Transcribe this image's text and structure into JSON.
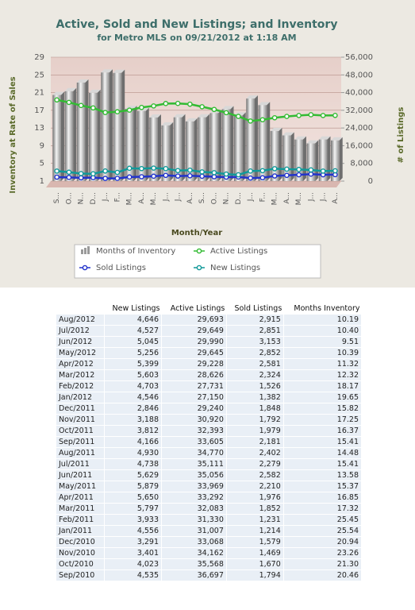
{
  "chart_data": {
    "type": "bar",
    "title": "Active, Sold and New Listings; and Inventory",
    "subtitle": "for Metro MLS on 09/21/2012 at 1:18 AM",
    "x_label": "Month/Year",
    "y_label": "Inventory at Rate of Sales",
    "y2_label": "# of Listings",
    "categories": [
      "S...",
      "O...",
      "N...",
      "D...",
      "J...",
      "F...",
      "M...",
      "A...",
      "M...",
      "J...",
      "J...",
      "A...",
      "S...",
      "O...",
      "N...",
      "D...",
      "J...",
      "F...",
      "M...",
      "A...",
      "M...",
      "J...",
      "J...",
      "A..."
    ],
    "series": [
      {
        "name": "Months of Inventory",
        "type": "bar",
        "axis": "y",
        "color": "#9a9a9a",
        "values": [
          20.46,
          21.3,
          23.26,
          20.94,
          25.54,
          25.45,
          17.32,
          16.85,
          15.37,
          13.58,
          15.41,
          14.48,
          15.41,
          16.37,
          17.25,
          15.82,
          19.65,
          18.17,
          12.32,
          11.32,
          10.39,
          9.51,
          10.4,
          10.19
        ]
      },
      {
        "name": "Active Listings",
        "type": "line",
        "axis": "y2",
        "color": "#33bb33",
        "values": [
          36697,
          35568,
          34162,
          33068,
          31007,
          31330,
          32083,
          33292,
          33969,
          35056,
          35111,
          34770,
          33605,
          32393,
          30920,
          29240,
          27150,
          27731,
          28626,
          29228,
          29645,
          29990,
          29649,
          29693
        ]
      },
      {
        "name": "Sold Listings",
        "type": "line",
        "axis": "y2",
        "color": "#2233cc",
        "values": [
          1794,
          1670,
          1469,
          1579,
          1214,
          1231,
          1852,
          1976,
          2210,
          2582,
          2279,
          2402,
          2181,
          1979,
          1792,
          1848,
          1382,
          1526,
          2324,
          2581,
          2852,
          3153,
          2851,
          2915
        ]
      },
      {
        "name": "New Listings",
        "type": "line",
        "axis": "y2",
        "color": "#119999",
        "values": [
          4535,
          4023,
          3401,
          3291,
          4556,
          3933,
          5797,
          5650,
          5879,
          5629,
          4738,
          4930,
          4166,
          3812,
          3188,
          2846,
          4546,
          4703,
          5603,
          5399,
          5256,
          5045,
          4527,
          4646
        ]
      }
    ],
    "ylim": [
      1,
      29
    ],
    "yticks": [
      1,
      5,
      9,
      13,
      17,
      21,
      25,
      29
    ],
    "y2lim": [
      0,
      56000
    ],
    "y2ticks": [
      0,
      {
        "value": 8000,
        "label": "8,000"
      },
      {
        "value": 16000,
        "label": "16,000"
      },
      {
        "value": 24000,
        "label": "24,000"
      },
      {
        "value": 32000,
        "label": "32,000"
      },
      {
        "value": 40000,
        "label": "40,000"
      },
      {
        "value": 48000,
        "label": "48,000"
      },
      {
        "value": 56000,
        "label": "56,000"
      }
    ],
    "grid": true,
    "legend": "bottom"
  },
  "table": {
    "columns": [
      "New Listings",
      "Active Listings",
      "Sold Listings",
      "Months Inventory"
    ],
    "rows": [
      {
        "month": "Aug/2012",
        "values": [
          "4,646",
          "29,693",
          "2,915",
          "10.19"
        ]
      },
      {
        "month": "Jul/2012",
        "values": [
          "4,527",
          "29,649",
          "2,851",
          "10.40"
        ]
      },
      {
        "month": "Jun/2012",
        "values": [
          "5,045",
          "29,990",
          "3,153",
          "9.51"
        ]
      },
      {
        "month": "May/2012",
        "values": [
          "5,256",
          "29,645",
          "2,852",
          "10.39"
        ]
      },
      {
        "month": "Apr/2012",
        "values": [
          "5,399",
          "29,228",
          "2,581",
          "11.32"
        ]
      },
      {
        "month": "Mar/2012",
        "values": [
          "5,603",
          "28,626",
          "2,324",
          "12.32"
        ]
      },
      {
        "month": "Feb/2012",
        "values": [
          "4,703",
          "27,731",
          "1,526",
          "18.17"
        ]
      },
      {
        "month": "Jan/2012",
        "values": [
          "4,546",
          "27,150",
          "1,382",
          "19.65"
        ]
      },
      {
        "month": "Dec/2011",
        "values": [
          "2,846",
          "29,240",
          "1,848",
          "15.82"
        ]
      },
      {
        "month": "Nov/2011",
        "values": [
          "3,188",
          "30,920",
          "1,792",
          "17.25"
        ]
      },
      {
        "month": "Oct/2011",
        "values": [
          "3,812",
          "32,393",
          "1,979",
          "16.37"
        ]
      },
      {
        "month": "Sep/2011",
        "values": [
          "4,166",
          "33,605",
          "2,181",
          "15.41"
        ]
      },
      {
        "month": "Aug/2011",
        "values": [
          "4,930",
          "34,770",
          "2,402",
          "14.48"
        ]
      },
      {
        "month": "Jul/2011",
        "values": [
          "4,738",
          "35,111",
          "2,279",
          "15.41"
        ]
      },
      {
        "month": "Jun/2011",
        "values": [
          "5,629",
          "35,056",
          "2,582",
          "13.58"
        ]
      },
      {
        "month": "May/2011",
        "values": [
          "5,879",
          "33,969",
          "2,210",
          "15.37"
        ]
      },
      {
        "month": "Apr/2011",
        "values": [
          "5,650",
          "33,292",
          "1,976",
          "16.85"
        ]
      },
      {
        "month": "Mar/2011",
        "values": [
          "5,797",
          "32,083",
          "1,852",
          "17.32"
        ]
      },
      {
        "month": "Feb/2011",
        "values": [
          "3,933",
          "31,330",
          "1,231",
          "25.45"
        ]
      },
      {
        "month": "Jan/2011",
        "values": [
          "4,556",
          "31,007",
          "1,214",
          "25.54"
        ]
      },
      {
        "month": "Dec/2010",
        "values": [
          "3,291",
          "33,068",
          "1,579",
          "20.94"
        ]
      },
      {
        "month": "Nov/2010",
        "values": [
          "3,401",
          "34,162",
          "1,469",
          "23.26"
        ]
      },
      {
        "month": "Oct/2010",
        "values": [
          "4,023",
          "35,568",
          "1,670",
          "21.30"
        ]
      },
      {
        "month": "Sep/2010",
        "values": [
          "4,535",
          "36,697",
          "1,794",
          "20.46"
        ]
      }
    ]
  }
}
